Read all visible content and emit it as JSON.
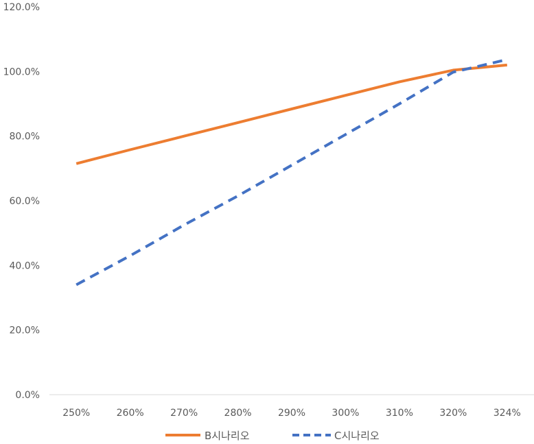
{
  "chart_data": {
    "type": "line",
    "title": "",
    "xlabel": "",
    "ylabel": "",
    "categories": [
      "250%",
      "260%",
      "270%",
      "280%",
      "290%",
      "300%",
      "310%",
      "320%",
      "324%"
    ],
    "series": [
      {
        "name": "B시나리오",
        "color": "#ED7D31",
        "dash": "solid",
        "values": [
          71.5,
          75.8,
          80.0,
          84.2,
          88.4,
          92.6,
          96.8,
          100.4,
          102.0
        ]
      },
      {
        "name": "C시나리오",
        "color": "#4472C4",
        "dash": "dashed",
        "values": [
          34.0,
          43.0,
          52.5,
          61.5,
          71.0,
          80.5,
          90.0,
          99.8,
          103.7
        ]
      }
    ],
    "ylim": [
      0,
      120
    ],
    "yticks": [
      "0.0%",
      "20.0%",
      "40.0%",
      "60.0%",
      "80.0%",
      "100.0%",
      "120.0%"
    ],
    "grid": false,
    "legend_position": "bottom"
  }
}
